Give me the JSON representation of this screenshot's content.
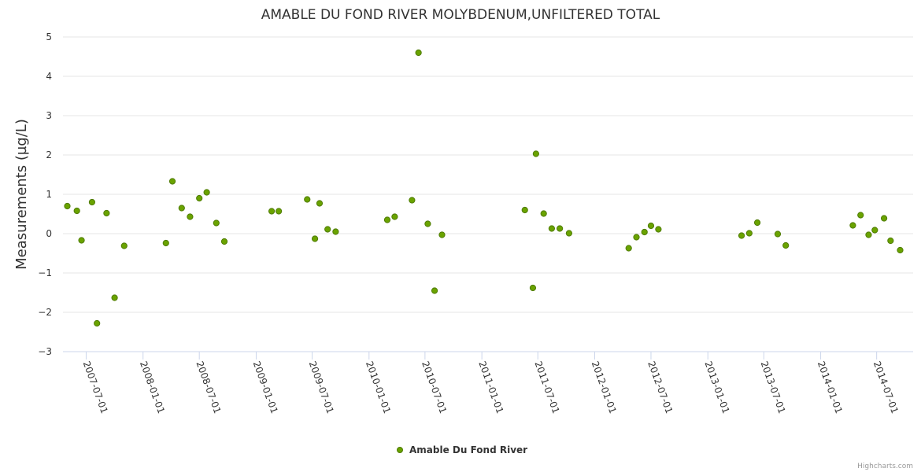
{
  "chart_data": {
    "type": "scatter",
    "title": "AMABLE DU FOND RIVER MOLYBDENUM,UNFILTERED TOTAL",
    "xlabel": "",
    "ylabel": "Measurements (µg/L)",
    "ylim": [
      -3,
      5
    ],
    "yticks": [
      5,
      4,
      3,
      2,
      1,
      0,
      -1,
      -2,
      -3
    ],
    "ytick_labels": [
      "5",
      "4",
      "3",
      "2",
      "1",
      "0",
      "−1",
      "−2",
      "−3"
    ],
    "xlim": [
      "2007-04-17",
      "2014-10-27"
    ],
    "xticks": [
      "2007-07-01",
      "2008-01-01",
      "2008-07-01",
      "2009-01-01",
      "2009-07-01",
      "2010-01-01",
      "2010-07-01",
      "2011-01-01",
      "2011-07-01",
      "2012-01-01",
      "2012-07-01",
      "2013-01-01",
      "2013-07-01",
      "2014-01-01",
      "2014-07-01"
    ],
    "grid": true,
    "legend": "bottom-center",
    "series": [
      {
        "name": "Amable Du Fond River",
        "color": "#6aa300",
        "points": [
          {
            "x": "2007-05-01",
            "y": 0.7
          },
          {
            "x": "2007-06-01",
            "y": 0.58
          },
          {
            "x": "2007-06-16",
            "y": -0.17
          },
          {
            "x": "2007-07-20",
            "y": 0.8
          },
          {
            "x": "2007-08-05",
            "y": -2.28
          },
          {
            "x": "2007-09-05",
            "y": 0.52
          },
          {
            "x": "2007-10-01",
            "y": -1.63
          },
          {
            "x": "2007-11-01",
            "y": -0.31
          },
          {
            "x": "2008-03-15",
            "y": -0.24
          },
          {
            "x": "2008-04-05",
            "y": 1.33
          },
          {
            "x": "2008-05-05",
            "y": 0.65
          },
          {
            "x": "2008-06-01",
            "y": 0.43
          },
          {
            "x": "2008-07-01",
            "y": 0.9
          },
          {
            "x": "2008-07-25",
            "y": 1.05
          },
          {
            "x": "2008-08-25",
            "y": 0.27
          },
          {
            "x": "2008-09-20",
            "y": -0.2
          },
          {
            "x": "2009-02-20",
            "y": 0.57
          },
          {
            "x": "2009-03-15",
            "y": 0.57
          },
          {
            "x": "2009-06-15",
            "y": 0.87
          },
          {
            "x": "2009-07-10",
            "y": -0.13
          },
          {
            "x": "2009-07-25",
            "y": 0.77
          },
          {
            "x": "2009-08-20",
            "y": 0.11
          },
          {
            "x": "2009-09-15",
            "y": 0.05
          },
          {
            "x": "2010-03-01",
            "y": 0.35
          },
          {
            "x": "2010-03-25",
            "y": 0.43
          },
          {
            "x": "2010-05-20",
            "y": 0.85
          },
          {
            "x": "2010-06-10",
            "y": 4.6
          },
          {
            "x": "2010-07-10",
            "y": 0.25
          },
          {
            "x": "2010-08-01",
            "y": -1.45
          },
          {
            "x": "2010-08-25",
            "y": -0.03
          },
          {
            "x": "2011-05-20",
            "y": 0.6
          },
          {
            "x": "2011-06-15",
            "y": -1.38
          },
          {
            "x": "2011-06-25",
            "y": 2.03
          },
          {
            "x": "2011-07-20",
            "y": 0.51
          },
          {
            "x": "2011-08-15",
            "y": 0.13
          },
          {
            "x": "2011-09-10",
            "y": 0.13
          },
          {
            "x": "2011-10-10",
            "y": 0.01
          },
          {
            "x": "2012-04-20",
            "y": -0.37
          },
          {
            "x": "2012-05-15",
            "y": -0.09
          },
          {
            "x": "2012-06-10",
            "y": 0.04
          },
          {
            "x": "2012-07-01",
            "y": 0.2
          },
          {
            "x": "2012-07-25",
            "y": 0.11
          },
          {
            "x": "2013-04-20",
            "y": -0.05
          },
          {
            "x": "2013-05-15",
            "y": 0.01
          },
          {
            "x": "2013-06-10",
            "y": 0.28
          },
          {
            "x": "2013-08-15",
            "y": -0.01
          },
          {
            "x": "2013-09-10",
            "y": -0.3
          },
          {
            "x": "2014-04-15",
            "y": 0.21
          },
          {
            "x": "2014-05-10",
            "y": 0.47
          },
          {
            "x": "2014-06-05",
            "y": -0.03
          },
          {
            "x": "2014-06-25",
            "y": 0.09
          },
          {
            "x": "2014-07-25",
            "y": 0.39
          },
          {
            "x": "2014-08-15",
            "y": -0.18
          },
          {
            "x": "2014-09-15",
            "y": -0.42
          }
        ]
      }
    ]
  },
  "credits": "Highcharts.com"
}
